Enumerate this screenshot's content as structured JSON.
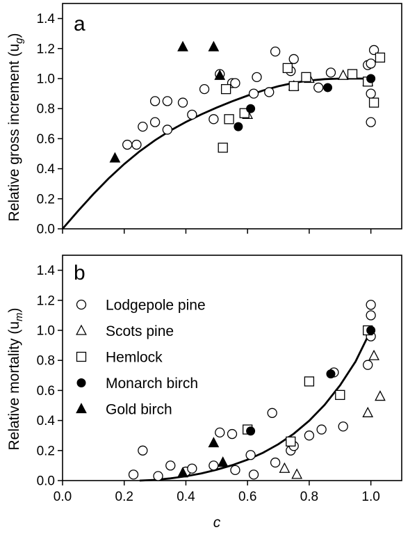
{
  "chart_data": [
    {
      "type": "scatter",
      "panel_label": "a",
      "ylabel": "Relative gross increment (u",
      "ylabel_sub": "g",
      "ylabel_close": ")",
      "xlabel": "",
      "xlim": [
        0,
        1.1
      ],
      "ylim": [
        0,
        1.5
      ],
      "yticks": [
        "0.0",
        "0.2",
        "0.4",
        "0.6",
        "0.8",
        "1.0",
        "1.2",
        "1.4"
      ],
      "ytick_values": [
        0,
        0.2,
        0.4,
        0.6,
        0.8,
        1.0,
        1.2,
        1.4
      ],
      "grid": false,
      "series": [
        {
          "name": "Lodgepole pine",
          "marker": "open-circle",
          "points": [
            [
              0.21,
              0.56
            ],
            [
              0.24,
              0.56
            ],
            [
              0.26,
              0.68
            ],
            [
              0.3,
              0.71
            ],
            [
              0.3,
              0.85
            ],
            [
              0.34,
              0.85
            ],
            [
              0.34,
              0.66
            ],
            [
              0.39,
              0.84
            ],
            [
              0.42,
              0.76
            ],
            [
              0.46,
              0.93
            ],
            [
              0.49,
              0.73
            ],
            [
              0.51,
              1.03
            ],
            [
              0.55,
              0.97
            ],
            [
              0.56,
              0.97
            ],
            [
              0.62,
              0.9
            ],
            [
              0.63,
              1.01
            ],
            [
              0.67,
              0.91
            ],
            [
              0.69,
              1.18
            ],
            [
              0.74,
              1.05
            ],
            [
              0.75,
              1.13
            ],
            [
              0.83,
              0.94
            ],
            [
              0.87,
              1.04
            ],
            [
              0.99,
              1.09
            ],
            [
              1.0,
              1.1
            ],
            [
              1.01,
              1.19
            ],
            [
              1.0,
              0.9
            ],
            [
              1.0,
              0.71
            ]
          ]
        },
        {
          "name": "Scots pine",
          "marker": "open-triangle",
          "points": [
            [
              0.6,
              0.76
            ],
            [
              0.75,
              0.95
            ],
            [
              0.8,
              1.0
            ],
            [
              0.91,
              1.02
            ],
            [
              0.99,
              0.98
            ]
          ]
        },
        {
          "name": "Hemlock",
          "marker": "open-square",
          "points": [
            [
              0.52,
              0.54
            ],
            [
              0.54,
              0.73
            ],
            [
              0.53,
              0.93
            ],
            [
              0.59,
              0.77
            ],
            [
              0.73,
              1.07
            ],
            [
              0.75,
              0.95
            ],
            [
              0.79,
              1.01
            ],
            [
              0.94,
              1.03
            ],
            [
              0.99,
              0.98
            ],
            [
              1.01,
              0.84
            ],
            [
              1.03,
              1.14
            ]
          ]
        },
        {
          "name": "Monarch birch",
          "marker": "filled-circle",
          "points": [
            [
              0.57,
              0.68
            ],
            [
              0.61,
              0.8
            ],
            [
              0.86,
              0.94
            ],
            [
              1.0,
              1.0
            ]
          ]
        },
        {
          "name": "Gold birch",
          "marker": "filled-triangle",
          "points": [
            [
              0.17,
              0.47
            ],
            [
              0.39,
              1.21
            ],
            [
              0.49,
              1.21
            ],
            [
              0.51,
              1.02
            ]
          ]
        }
      ],
      "fit_curve": {
        "kind": "saturating",
        "points": [
          [
            0,
            0
          ],
          [
            0.05,
            0.1185
          ],
          [
            0.1,
            0.2314
          ],
          [
            0.15,
            0.3362
          ],
          [
            0.2,
            0.4312
          ],
          [
            0.25,
            0.5156
          ],
          [
            0.3,
            0.5898
          ],
          [
            0.35,
            0.6546
          ],
          [
            0.4,
            0.7113
          ],
          [
            0.45,
            0.7616
          ],
          [
            0.5,
            0.8071
          ],
          [
            0.55,
            0.8488
          ],
          [
            0.6,
            0.8867
          ],
          [
            0.65,
            0.9205
          ],
          [
            0.7,
            0.9493
          ],
          [
            0.75,
            0.9717
          ],
          [
            0.8,
            0.9872
          ],
          [
            0.85,
            0.9962
          ],
          [
            0.9,
            0.9998
          ],
          [
            0.95,
            1.0
          ],
          [
            1.0,
            1.0
          ]
        ]
      }
    },
    {
      "type": "scatter",
      "panel_label": "b",
      "ylabel": "Relative mortality (u",
      "ylabel_sub": "m",
      "ylabel_close": ")",
      "xlabel": "c",
      "xlim": [
        0,
        1.1
      ],
      "ylim": [
        0,
        1.5
      ],
      "xticks": [
        "0.0",
        "0.2",
        "0.4",
        "0.6",
        "0.8",
        "1.0"
      ],
      "xtick_values": [
        0,
        0.2,
        0.4,
        0.6,
        0.8,
        1.0
      ],
      "yticks": [
        "0.0",
        "0.2",
        "0.4",
        "0.6",
        "0.8",
        "1.0",
        "1.2",
        "1.4"
      ],
      "ytick_values": [
        0,
        0.2,
        0.4,
        0.6,
        0.8,
        1.0,
        1.2,
        1.4
      ],
      "grid": false,
      "legend_position": "top-left",
      "series": [
        {
          "name": "Lodgepole pine",
          "marker": "open-circle",
          "points": [
            [
              0.23,
              0.04
            ],
            [
              0.26,
              0.2
            ],
            [
              0.31,
              0.03
            ],
            [
              0.35,
              0.1
            ],
            [
              0.4,
              0.06
            ],
            [
              0.42,
              0.08
            ],
            [
              0.49,
              0.1
            ],
            [
              0.51,
              0.32
            ],
            [
              0.55,
              0.31
            ],
            [
              0.56,
              0.07
            ],
            [
              0.61,
              0.17
            ],
            [
              0.62,
              0.04
            ],
            [
              0.68,
              0.45
            ],
            [
              0.69,
              0.12
            ],
            [
              0.74,
              0.2
            ],
            [
              0.75,
              0.23
            ],
            [
              0.8,
              0.3
            ],
            [
              0.84,
              0.34
            ],
            [
              0.88,
              0.72
            ],
            [
              0.91,
              0.36
            ],
            [
              0.99,
              0.77
            ],
            [
              1.0,
              0.96
            ],
            [
              1.0,
              1.1
            ],
            [
              1.0,
              1.17
            ]
          ]
        },
        {
          "name": "Scots pine",
          "marker": "open-triangle",
          "points": [
            [
              0.72,
              0.08
            ],
            [
              0.76,
              0.04
            ],
            [
              0.99,
              0.45
            ],
            [
              1.01,
              0.83
            ],
            [
              1.03,
              0.56
            ]
          ]
        },
        {
          "name": "Hemlock",
          "marker": "open-square",
          "points": [
            [
              0.6,
              0.34
            ],
            [
              0.74,
              0.26
            ],
            [
              0.8,
              0.66
            ],
            [
              0.9,
              0.57
            ],
            [
              0.99,
              1.0
            ]
          ]
        },
        {
          "name": "Monarch birch",
          "marker": "filled-circle",
          "points": [
            [
              0.61,
              0.33
            ],
            [
              0.87,
              0.71
            ],
            [
              1.0,
              1.0
            ]
          ]
        },
        {
          "name": "Gold birch",
          "marker": "filled-triangle",
          "points": [
            [
              0.39,
              0.05
            ],
            [
              0.49,
              0.25
            ],
            [
              0.52,
              0.12
            ]
          ]
        }
      ],
      "fit_curve": {
        "kind": "power",
        "points": [
          [
            0.25,
            0.0
          ],
          [
            0.3,
            0.0048
          ],
          [
            0.35,
            0.0146
          ],
          [
            0.4,
            0.0289
          ],
          [
            0.45,
            0.0479
          ],
          [
            0.5,
            0.0721
          ],
          [
            0.55,
            0.1022
          ],
          [
            0.6,
            0.1394
          ],
          [
            0.65,
            0.1853
          ],
          [
            0.7,
            0.242
          ],
          [
            0.75,
            0.3119
          ],
          [
            0.8,
            0.3981
          ],
          [
            0.85,
            0.5042
          ],
          [
            0.9,
            0.6341
          ],
          [
            0.95,
            0.7918
          ],
          [
            1.0,
            1.0
          ]
        ]
      }
    }
  ],
  "colors": {
    "ink": "#000000",
    "background": "#ffffff"
  }
}
